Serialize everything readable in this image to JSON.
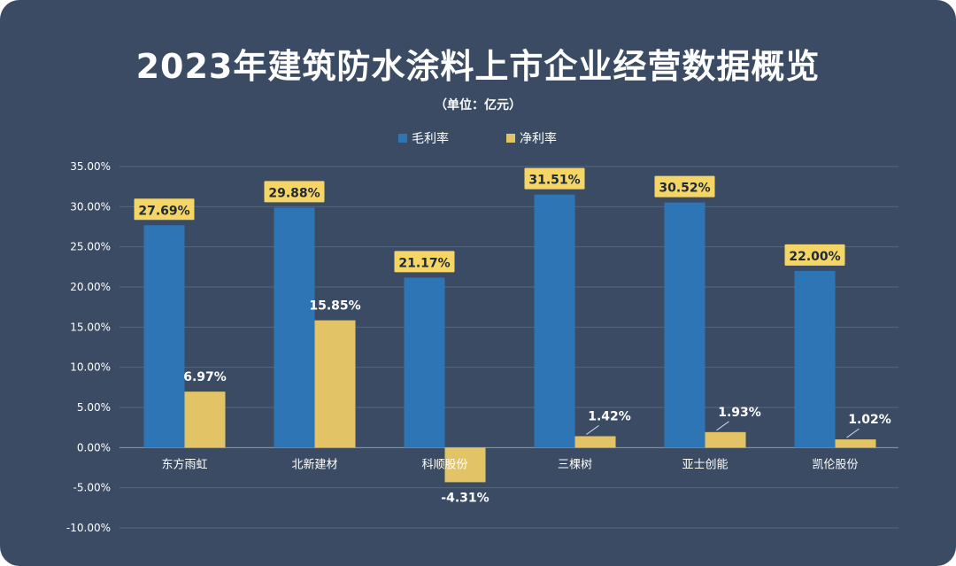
{
  "chart_data": {
    "type": "bar",
    "title": "2023年建筑防水涂料上市企业经营数据概览",
    "subtitle": "（单位：亿元）",
    "categories": [
      "东方雨虹",
      "北新建材",
      "科顺股份",
      "三棵树",
      "亚士创能",
      "凯伦股份"
    ],
    "series": [
      {
        "name": "毛利率",
        "values": [
          27.69,
          29.88,
          21.17,
          31.51,
          30.52,
          22.0
        ],
        "labels": [
          "27.69%",
          "29.88%",
          "21.17%",
          "31.51%",
          "30.52%",
          "22.00%"
        ],
        "color": "#2e75b6"
      },
      {
        "name": "净利率",
        "values": [
          6.97,
          15.85,
          -4.31,
          1.42,
          1.93,
          1.02
        ],
        "labels": [
          "6.97%",
          "15.85%",
          "-4.31%",
          "1.42%",
          "1.93%",
          "1.02%"
        ],
        "color": "#e2c466"
      }
    ],
    "ylim": [
      -10,
      35
    ],
    "yticks": [
      35,
      30,
      25,
      20,
      15,
      10,
      5,
      0,
      -5,
      -10
    ],
    "ytick_labels": [
      "35.00%",
      "30.00%",
      "25.00%",
      "20.00%",
      "15.00%",
      "10.00%",
      "5.00%",
      "0.00%",
      "-5.00%",
      "-10.00%"
    ],
    "grid": true,
    "legend_position": "top",
    "label_box_color": "#f5d565"
  }
}
